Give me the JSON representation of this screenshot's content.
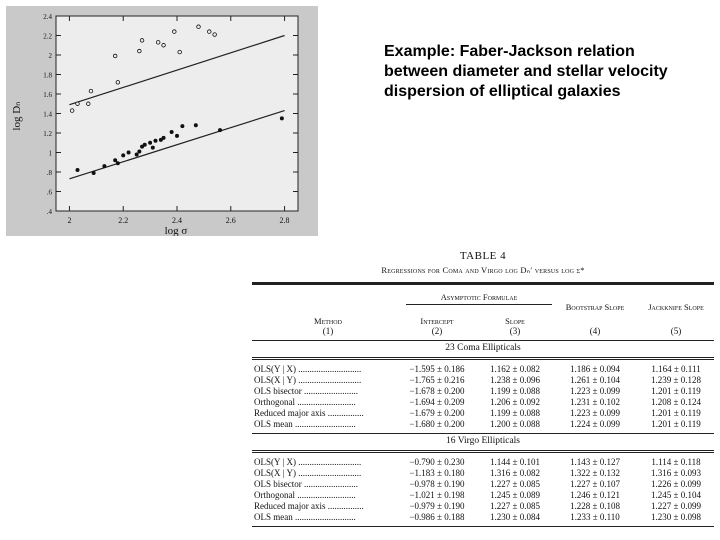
{
  "caption": {
    "lines": [
      "Example: Faber-Jackson relation",
      "between diameter and stellar velocity",
      "dispersion of elliptical galaxies"
    ]
  },
  "chart_data": {
    "type": "scatter",
    "title": "",
    "xlabel": "log σ",
    "ylabel": "log Dₙ",
    "xlim": [
      1.95,
      2.85
    ],
    "ylim": [
      0.4,
      2.4
    ],
    "xticks": [
      2.0,
      2.2,
      2.4,
      2.6,
      2.8
    ],
    "xtick_labels": [
      "2",
      "2.2",
      "2.4",
      "2.6",
      "2.8"
    ],
    "yticks": [
      0.4,
      0.6,
      0.8,
      1.0,
      1.2,
      1.4,
      1.6,
      1.8,
      2.0,
      2.2,
      2.4
    ],
    "ytick_labels": [
      ".4",
      ".6",
      ".8",
      "1",
      "1.2",
      "1.4",
      "1.6",
      "1.8",
      "2",
      "2.2",
      "2.4"
    ],
    "series": [
      {
        "name": "upper (open circles)",
        "marker": "open",
        "x": [
          2.01,
          2.03,
          2.07,
          2.08,
          2.17,
          2.18,
          2.26,
          2.27,
          2.33,
          2.35,
          2.39,
          2.41,
          2.48,
          2.52,
          2.54
        ],
        "y": [
          1.43,
          1.5,
          1.5,
          1.63,
          1.99,
          1.72,
          2.04,
          2.15,
          2.13,
          2.1,
          2.24,
          2.03,
          2.29,
          2.24,
          2.21
        ]
      },
      {
        "name": "lower (filled dots)",
        "marker": "filled",
        "x": [
          2.03,
          2.09,
          2.13,
          2.17,
          2.18,
          2.2,
          2.22,
          2.25,
          2.26,
          2.27,
          2.28,
          2.3,
          2.31,
          2.32,
          2.34,
          2.35,
          2.38,
          2.4,
          2.42,
          2.47,
          2.56,
          2.79
        ],
        "y": [
          0.82,
          0.79,
          0.86,
          0.92,
          0.89,
          0.97,
          1.0,
          0.98,
          1.01,
          1.06,
          1.08,
          1.1,
          1.05,
          1.12,
          1.13,
          1.15,
          1.21,
          1.17,
          1.27,
          1.28,
          1.23,
          1.35
        ]
      }
    ],
    "lines": [
      {
        "name": "upper fit",
        "x": [
          2.0,
          2.8
        ],
        "y": [
          1.49,
          2.2
        ]
      },
      {
        "name": "lower fit",
        "x": [
          2.0,
          2.8
        ],
        "y": [
          0.73,
          1.43
        ]
      }
    ]
  },
  "table": {
    "number": "TABLE 4",
    "title": "Regressions for Coma and Virgo log Dₙ′ versus log σ*",
    "group_header": "Asymptotic Formulae",
    "columns": [
      {
        "name": "Method",
        "num": "(1)"
      },
      {
        "name": "Intercept",
        "num": "(2)"
      },
      {
        "name": "Slope",
        "num": "(3)"
      },
      {
        "name": "Bootstrap Slope",
        "num": "(4)"
      },
      {
        "name": "Jackknife Slope",
        "num": "(5)"
      }
    ],
    "sections": [
      {
        "title": "23 Coma Ellipticals",
        "rows": [
          {
            "method": "OLS(Y | X) ............................",
            "intercept": "−1.595 ± 0.186",
            "slope": "1.162 ± 0.082",
            "boot": "1.186 ± 0.094",
            "jack": "1.164 ± 0.111"
          },
          {
            "method": "OLS(X | Y) ............................",
            "intercept": "−1.765 ± 0.216",
            "slope": "1.238 ± 0.096",
            "boot": "1.261 ± 0.104",
            "jack": "1.239 ± 0.128"
          },
          {
            "method": "OLS bisector ........................",
            "intercept": "−1.678 ± 0.200",
            "slope": "1.199 ± 0.088",
            "boot": "1.223 ± 0.099",
            "jack": "1.201 ± 0.119"
          },
          {
            "method": "Orthogonal ..........................",
            "intercept": "−1.694 ± 0.209",
            "slope": "1.206 ± 0.092",
            "boot": "1.231 ± 0.102",
            "jack": "1.208 ± 0.124"
          },
          {
            "method": "Reduced major axis ................",
            "intercept": "−1.679 ± 0.200",
            "slope": "1.199 ± 0.088",
            "boot": "1.223 ± 0.099",
            "jack": "1.201 ± 0.119"
          },
          {
            "method": "OLS mean ...........................",
            "intercept": "−1.680 ± 0.200",
            "slope": "1.200 ± 0.088",
            "boot": "1.224 ± 0.099",
            "jack": "1.201 ± 0.119"
          }
        ]
      },
      {
        "title": "16 Virgo Ellipticals",
        "rows": [
          {
            "method": "OLS(Y | X) ............................",
            "intercept": "−0.790 ± 0.230",
            "slope": "1.144 ± 0.101",
            "boot": "1.143 ± 0.127",
            "jack": "1.114 ± 0.118"
          },
          {
            "method": "OLS(X | Y) ............................",
            "intercept": "−1.183 ± 0.180",
            "slope": "1.316 ± 0.082",
            "boot": "1.322 ± 0.132",
            "jack": "1.316 ± 0.093"
          },
          {
            "method": "OLS bisector ........................",
            "intercept": "−0.978 ± 0.190",
            "slope": "1.227 ± 0.085",
            "boot": "1.227 ± 0.107",
            "jack": "1.226 ± 0.099"
          },
          {
            "method": "Orthogonal ..........................",
            "intercept": "−1.021 ± 0.198",
            "slope": "1.245 ± 0.089",
            "boot": "1.246 ± 0.121",
            "jack": "1.245 ± 0.104"
          },
          {
            "method": "Reduced major axis ................",
            "intercept": "−0.979 ± 0.190",
            "slope": "1.227 ± 0.085",
            "boot": "1.228 ± 0.108",
            "jack": "1.227 ± 0.099"
          },
          {
            "method": "OLS mean ...........................",
            "intercept": "−0.986 ± 0.188",
            "slope": "1.230 ± 0.084",
            "boot": "1.233 ± 0.110",
            "jack": "1.230 ± 0.098"
          }
        ]
      }
    ]
  }
}
